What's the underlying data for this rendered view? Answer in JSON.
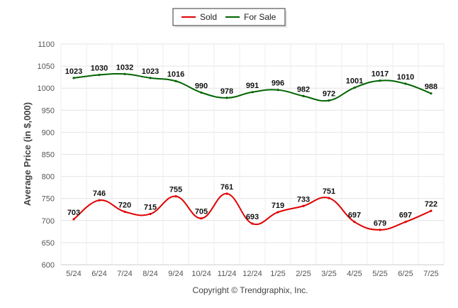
{
  "chart_data": {
    "type": "line",
    "categories": [
      "5/24",
      "6/24",
      "7/24",
      "8/24",
      "9/24",
      "10/24",
      "11/24",
      "12/24",
      "1/25",
      "2/25",
      "3/25",
      "4/25",
      "5/25",
      "6/25",
      "7/25"
    ],
    "series": [
      {
        "name": "Sold",
        "color": "#e00000",
        "values": [
          703,
          746,
          720,
          715,
          755,
          705,
          761,
          693,
          719,
          733,
          751,
          697,
          679,
          697,
          722
        ]
      },
      {
        "name": "For Sale",
        "color": "#006400",
        "values": [
          1023,
          1030,
          1032,
          1023,
          1016,
          990,
          978,
          991,
          996,
          982,
          972,
          1001,
          1017,
          1010,
          988
        ]
      }
    ],
    "ylabel": "Average Price (in $,000)",
    "xlabel": "",
    "ylim": [
      600,
      1100
    ],
    "yticks": [
      600,
      650,
      700,
      750,
      800,
      850,
      900,
      950,
      1000,
      1050,
      1100
    ],
    "grid": true,
    "legend_position": "top-center",
    "credit": "Copyright © Trendgraphix, Inc."
  }
}
